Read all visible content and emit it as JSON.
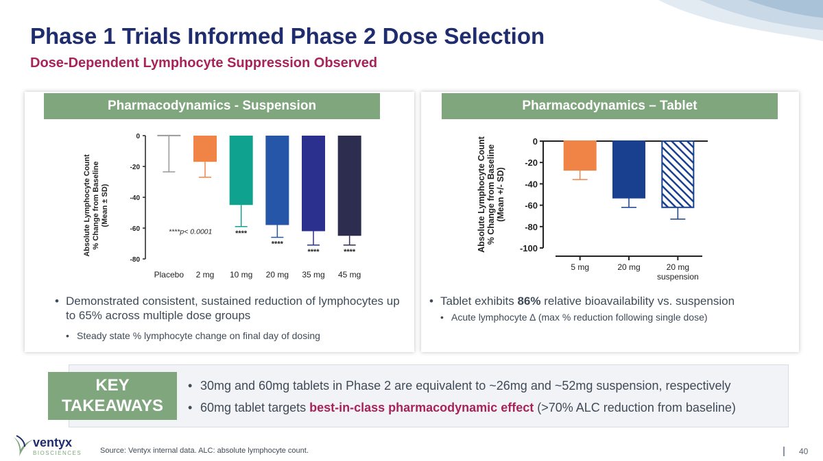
{
  "title": "Phase 1 Trials Informed Phase 2 Dose Selection",
  "subtitle": "Dose-Dependent Lymphocyte Suppression Observed",
  "colors": {
    "title_navy": "#1f2d6e",
    "subtitle_magenta": "#a8235a",
    "header_green": "#80a67e"
  },
  "left_panel": {
    "header": "Pharmacodynamics - Suspension",
    "bullet_main": "Demonstrated consistent, sustained reduction of lymphocytes up to 65% across multiple dose groups",
    "bullet_sub": "Steady state % lymphocyte change on final day of dosing"
  },
  "right_panel": {
    "header": "Pharmacodynamics – Tablet",
    "bullet_main_pre": "Tablet exhibits ",
    "bullet_main_bold": "86%",
    "bullet_main_post": " relative bioavailability vs. suspension",
    "bullet_sub": "Acute lymphocyte ∆ (max % reduction following single dose)"
  },
  "chart_data": [
    {
      "type": "bar",
      "ylabel_lines": [
        "Absolute Lymphocyte Count",
        "% Change from Baseline",
        "(Mean ± SD)"
      ],
      "categories": [
        "Placebo",
        "2 mg",
        "10 mg",
        "20 mg",
        "35 mg",
        "45 mg"
      ],
      "values": [
        0.5,
        -17,
        -45,
        -58,
        -62,
        -65
      ],
      "errors": [
        24,
        10,
        14,
        8,
        9,
        6
      ],
      "colors": [
        "#999999",
        "#ef8446",
        "#0fa38f",
        "#2556a8",
        "#2b2f8e",
        "#2c2d4f"
      ],
      "significance": [
        "",
        "",
        "****",
        "****",
        "****",
        "****"
      ],
      "annotation": "****p< 0.0001",
      "yticks": [
        0,
        -20,
        -40,
        -60,
        -80
      ],
      "ylim": [
        -80,
        0
      ]
    },
    {
      "type": "bar",
      "ylabel_lines": [
        "Absolute Lymphocyte Count",
        "% Change from Baseline",
        "(Mean +/- SD)"
      ],
      "categories": [
        "5 mg",
        "20 mg",
        "20 mg suspension"
      ],
      "category_lines": [
        [
          "5 mg"
        ],
        [
          "20 mg"
        ],
        [
          "20 mg",
          "suspension"
        ]
      ],
      "values": [
        -27,
        -53,
        -62
      ],
      "errors": [
        9,
        9,
        11
      ],
      "colors": [
        "#ef8446",
        "#193f8f",
        "#193f8f"
      ],
      "hatched": [
        false,
        false,
        true
      ],
      "yticks": [
        0,
        -20,
        -40,
        -60,
        -80,
        -100
      ],
      "ylim": [
        -100,
        0
      ]
    }
  ],
  "key_takeaways": {
    "label_line1": "KEY",
    "label_line2": "TAKEAWAYS",
    "bullet1": "30mg and 60mg tablets in Phase 2 are equivalent to ~26mg and ~52mg suspension, respectively",
    "bullet2_pre": "60mg tablet targets ",
    "bullet2_highlight": "best-in-class pharmacodynamic effect",
    "bullet2_post": " (>70% ALC reduction from baseline)"
  },
  "logo": {
    "name": "ventyx",
    "tagline": "BIOSCIENCES"
  },
  "source": "Source: Ventyx internal data. ALC: absolute lymphocyte count.",
  "page_number": "40"
}
